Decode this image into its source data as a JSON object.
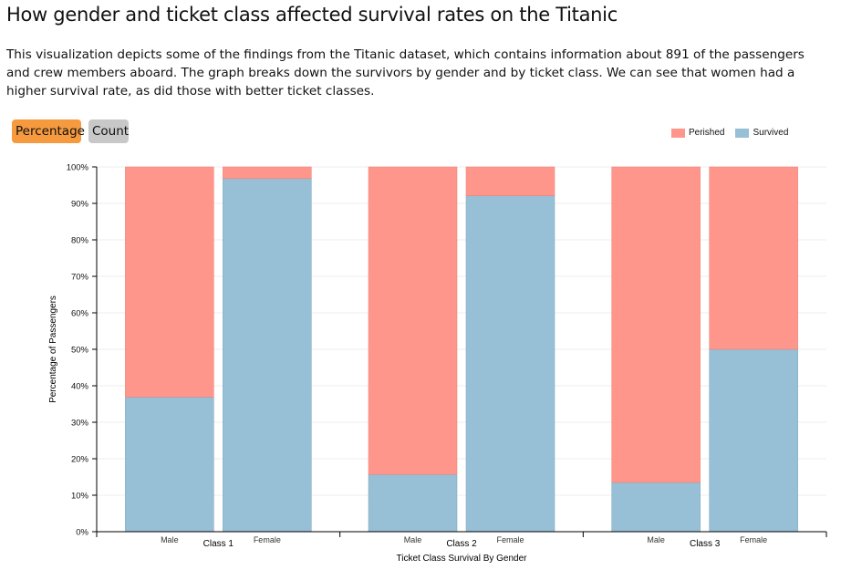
{
  "header": {
    "title": "How gender and ticket class affected survival rates on the Titanic",
    "description": "This visualization depicts some of the findings from the Titanic dataset, which contains information about 891 of the passengers and crew members aboard. The graph breaks down the survivors by gender and by ticket class. We can see that women had a higher survival rate, as did those with better ticket classes."
  },
  "controls": {
    "percentage_label": "Percentage",
    "count_label": "Count",
    "active": "Percentage"
  },
  "colors": {
    "perished": "#ff968c",
    "survived": "#97bfd6",
    "active_button": "#f59a3f",
    "inactive_button": "#c8c8c8"
  },
  "chart_data": {
    "type": "bar",
    "stacked": true,
    "xlabel": "Ticket Class Survival By Gender",
    "ylabel": "Percentage of Passengers",
    "ylim": [
      0,
      100
    ],
    "yticks": [
      "0%",
      "10%",
      "20%",
      "30%",
      "40%",
      "50%",
      "60%",
      "70%",
      "80%",
      "90%",
      "100%"
    ],
    "legend": [
      "Perished",
      "Survived"
    ],
    "legend_position": "top-right",
    "groups": [
      {
        "label": "Class 1",
        "bars": [
          {
            "label": "Male",
            "survived": 36.9,
            "perished": 63.1
          },
          {
            "label": "Female",
            "survived": 96.8,
            "perished": 3.2
          }
        ]
      },
      {
        "label": "Class 2",
        "bars": [
          {
            "label": "Male",
            "survived": 15.7,
            "perished": 84.3
          },
          {
            "label": "Female",
            "survived": 92.1,
            "perished": 7.9
          }
        ]
      },
      {
        "label": "Class 3",
        "bars": [
          {
            "label": "Male",
            "survived": 13.5,
            "perished": 86.5
          },
          {
            "label": "Female",
            "survived": 50.0,
            "perished": 50.0
          }
        ]
      }
    ]
  }
}
